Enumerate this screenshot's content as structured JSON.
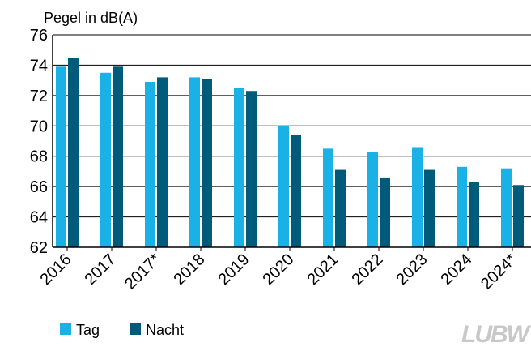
{
  "chart_data": {
    "type": "bar",
    "y_label": "Pegel in dB(A)",
    "categories": [
      "2016",
      "2017",
      "2017*",
      "2018",
      "2019",
      "2020",
      "2021",
      "2022",
      "2023",
      "2024",
      "2024*"
    ],
    "series": [
      {
        "name": "Tag",
        "color": "#1ab2e6",
        "values": [
          73.9,
          73.5,
          72.9,
          73.2,
          72.5,
          70.0,
          68.5,
          68.3,
          68.6,
          67.3,
          67.2
        ]
      },
      {
        "name": "Nacht",
        "color": "#005b7b",
        "values": [
          74.5,
          73.9,
          73.2,
          73.1,
          72.3,
          69.4,
          67.1,
          66.6,
          67.1,
          66.3,
          66.1
        ]
      }
    ],
    "ylim": [
      62,
      76
    ],
    "yticks": [
      62,
      64,
      66,
      68,
      70,
      72,
      74,
      76
    ],
    "grid": true,
    "logo": "LUBW"
  }
}
